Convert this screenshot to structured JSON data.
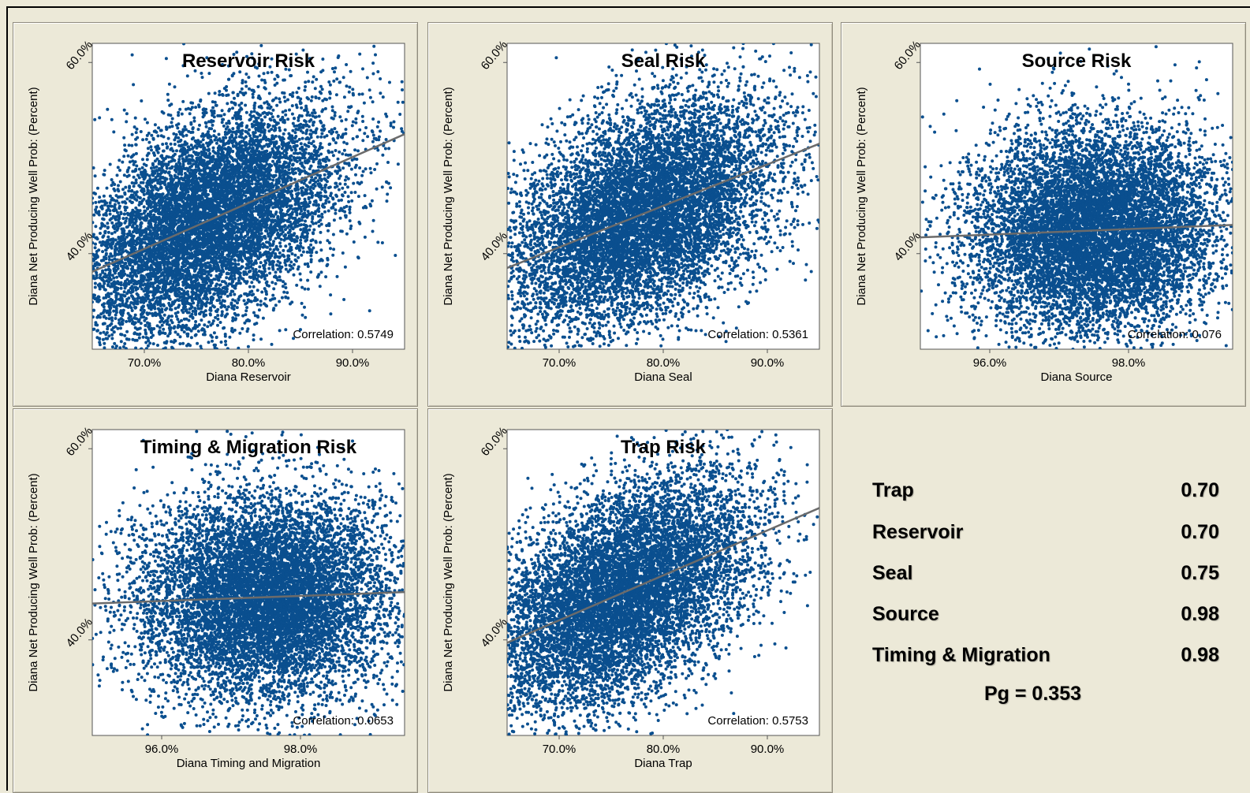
{
  "colors": {
    "point": "#0a4f8f",
    "trend": "#6b6b6b",
    "background": "#ece9d8"
  },
  "chart_data": [
    {
      "type": "scatter",
      "title": "Reservoir Risk",
      "xlabel": "Diana Reservoir",
      "ylabel": "Diana Net Producing Well Prob: (Percent)",
      "x_ticks": [
        "70.0%",
        "80.0%",
        "90.0%"
      ],
      "y_ticks": [
        "40.0%",
        "60.0%"
      ],
      "xlim": [
        65,
        95
      ],
      "ylim": [
        30,
        62
      ],
      "correlation_text": "Correlation: 0.5749",
      "trend": {
        "x": [
          65,
          95
        ],
        "y": [
          38.1,
          52.5
        ]
      },
      "distribution": {
        "n": 9000,
        "x_center": 76,
        "x_sd": 6.5,
        "y_center": 42.5,
        "y_sd": 5.4
      }
    },
    {
      "type": "scatter",
      "title": "Seal Risk",
      "xlabel": "Diana Seal",
      "ylabel": "Diana Net Producing Well Prob: (Percent)",
      "x_ticks": [
        "70.0%",
        "80.0%",
        "90.0%"
      ],
      "y_ticks": [
        "40.0%",
        "60.0%"
      ],
      "xlim": [
        65,
        95
      ],
      "ylim": [
        30,
        62
      ],
      "correlation_text": "Correlation: 0.5361",
      "trend": {
        "x": [
          65,
          95
        ],
        "y": [
          38.5,
          51.5
        ]
      },
      "distribution": {
        "n": 9000,
        "x_center": 78,
        "x_sd": 6.5,
        "y_center": 42.5,
        "y_sd": 5.4
      }
    },
    {
      "type": "scatter",
      "title": "Source Risk",
      "xlabel": "Diana Source",
      "ylabel": "Diana Net Producing Well Prob: (Percent)",
      "x_ticks": [
        "96.0%",
        "98.0%"
      ],
      "y_ticks": [
        "40.0%",
        "60.0%"
      ],
      "xlim": [
        95,
        99.5
      ],
      "ylim": [
        30,
        62
      ],
      "correlation_text": "Correlation: 0.076",
      "trend": {
        "x": [
          95,
          99.5
        ],
        "y": [
          41.7,
          43.0
        ]
      },
      "distribution": {
        "n": 9000,
        "x_center": 97.5,
        "x_sd": 0.9,
        "y_center": 42.5,
        "y_sd": 5.4
      }
    },
    {
      "type": "scatter",
      "title": "Timing & Migration Risk",
      "xlabel": "Diana Timing and Migration",
      "ylabel": "Diana Net Producing Well Prob: (Percent)",
      "x_ticks": [
        "96.0%",
        "98.0%"
      ],
      "y_ticks": [
        "40.0%",
        "60.0%"
      ],
      "xlim": [
        95,
        99.5
      ],
      "ylim": [
        30,
        62
      ],
      "correlation_text": "Correlation: 0.0653",
      "trend": {
        "x": [
          95,
          99.5
        ],
        "y": [
          43.8,
          45.0
        ]
      },
      "distribution": {
        "n": 9000,
        "x_center": 97.5,
        "x_sd": 0.9,
        "y_center": 42.5,
        "y_sd": 5.4
      }
    },
    {
      "type": "scatter",
      "title": "Trap Risk",
      "xlabel": "Diana Trap",
      "ylabel": "Diana Net Producing Well Prob: (Percent)",
      "x_ticks": [
        "70.0%",
        "80.0%",
        "90.0%"
      ],
      "y_ticks": [
        "40.0%",
        "60.0%"
      ],
      "xlim": [
        65,
        95
      ],
      "ylim": [
        30,
        62
      ],
      "correlation_text": "Correlation: 0.5753",
      "trend": {
        "x": [
          65,
          95
        ],
        "y": [
          39.7,
          53.8
        ]
      },
      "distribution": {
        "n": 9000,
        "x_center": 76,
        "x_sd": 6.5,
        "y_center": 42.5,
        "y_sd": 5.4
      }
    }
  ],
  "summary": {
    "rows": [
      {
        "label": "Trap",
        "value": "0.70"
      },
      {
        "label": "Reservoir",
        "value": "0.70"
      },
      {
        "label": "Seal",
        "value": "0.75"
      },
      {
        "label": "Source",
        "value": "0.98"
      },
      {
        "label": "Timing & Migration",
        "value": "0.98"
      }
    ],
    "pg": "Pg = 0.353"
  }
}
